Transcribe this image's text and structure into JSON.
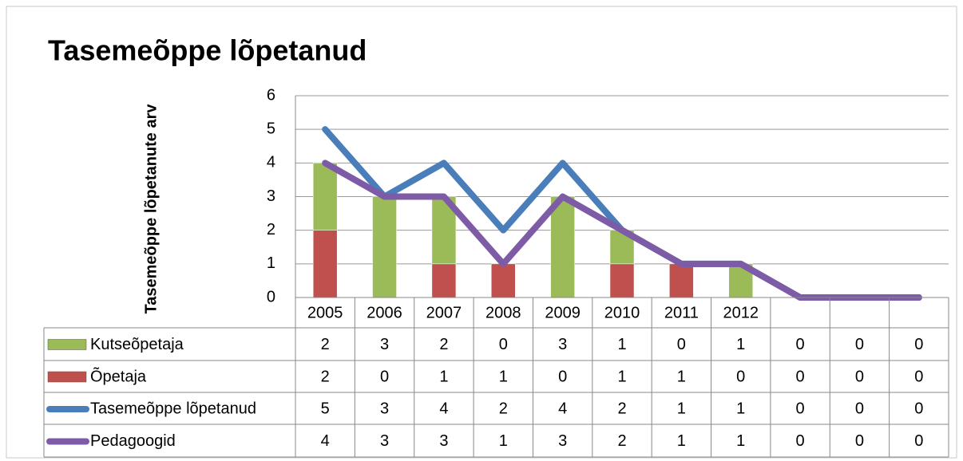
{
  "chart_data": {
    "type": "bar",
    "stacked": true,
    "title": "Tasemeõppe lõpetanud",
    "y_label": "Tasemeõppe lõpetanute arv",
    "categories": [
      "2005",
      "2006",
      "2007",
      "2008",
      "2009",
      "2010",
      "2011",
      "2012",
      null,
      null,
      null
    ],
    "ylim": [
      0,
      6
    ],
    "yticks": [
      0,
      1,
      2,
      3,
      4,
      5,
      6
    ],
    "grid": true,
    "series": [
      {
        "name": "Kutseõpetaja",
        "type": "bar",
        "color": "#9bbb59",
        "values": [
          2,
          3,
          2,
          0,
          3,
          1,
          0,
          1,
          0,
          0,
          0
        ]
      },
      {
        "name": "Õpetaja",
        "type": "bar",
        "color": "#c0504d",
        "values": [
          2,
          0,
          1,
          1,
          0,
          1,
          1,
          0,
          0,
          0,
          0
        ]
      },
      {
        "name": "Tasemeõppe lõpetanud",
        "type": "line",
        "color": "#4a7ebb",
        "values": [
          5,
          3,
          4,
          2,
          4,
          2,
          1,
          1,
          0,
          0,
          0
        ]
      },
      {
        "name": "Pedagoogid",
        "type": "line",
        "color": "#7d5ba6",
        "values": [
          4,
          3,
          3,
          1,
          3,
          2,
          1,
          1,
          0,
          0,
          0
        ]
      }
    ]
  }
}
